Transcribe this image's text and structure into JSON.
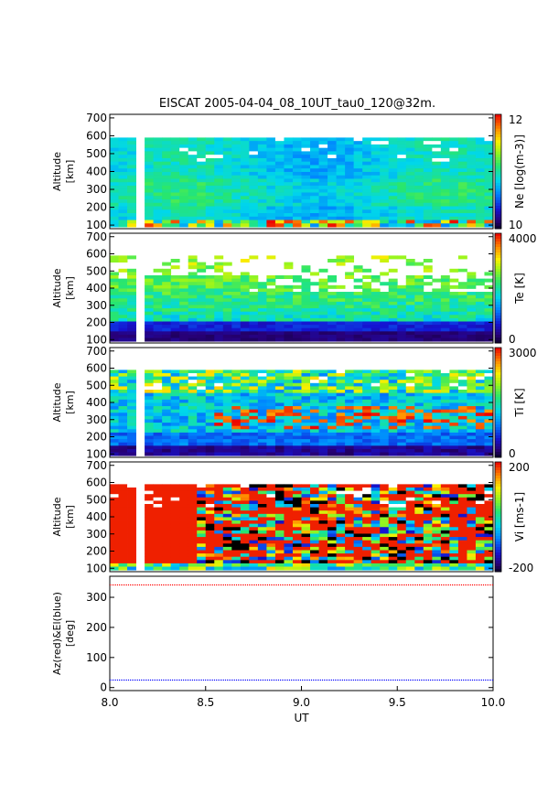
{
  "title": "EISCAT 2005-04-04_08_10UT_tau0_120@32m.",
  "colors": {
    "az_line": "#ff0000",
    "el_line": "#0000ff",
    "missing": "#ffffff",
    "bad": "#000000"
  },
  "chart_data": [
    {
      "type": "heatmap",
      "panel": "Ne",
      "ylabel_line1": "Altitude",
      "ylabel_line2": "[km]",
      "yticks": [
        "100",
        "200",
        "300",
        "400",
        "500",
        "600",
        "700"
      ],
      "ylim": [
        80,
        720
      ],
      "xlim": [
        8.0,
        10.0
      ],
      "colorbar_label": "Ne [log(m-3)]",
      "colorbar_max": "12",
      "colorbar_min": "10",
      "range": [
        10,
        12
      ]
    },
    {
      "type": "heatmap",
      "panel": "Te",
      "ylabel_line1": "Altitude",
      "ylabel_line2": "[km]",
      "yticks": [
        "100",
        "200",
        "300",
        "400",
        "500",
        "600",
        "700"
      ],
      "ylim": [
        80,
        720
      ],
      "xlim": [
        8.0,
        10.0
      ],
      "colorbar_label": "Te [K]",
      "colorbar_max": "4000",
      "colorbar_min": "0",
      "range": [
        0,
        4000
      ]
    },
    {
      "type": "heatmap",
      "panel": "Ti",
      "ylabel_line1": "Altitude",
      "ylabel_line2": "[km]",
      "yticks": [
        "100",
        "200",
        "300",
        "400",
        "500",
        "600",
        "700"
      ],
      "ylim": [
        80,
        720
      ],
      "xlim": [
        8.0,
        10.0
      ],
      "colorbar_label": "Ti [K]",
      "colorbar_max": "3000",
      "colorbar_min": "0",
      "range": [
        0,
        3000
      ]
    },
    {
      "type": "heatmap",
      "panel": "Vi",
      "ylabel_line1": "Altitude",
      "ylabel_line2": "[km]",
      "yticks": [
        "100",
        "200",
        "300",
        "400",
        "500",
        "600",
        "700"
      ],
      "ylim": [
        80,
        720
      ],
      "xlim": [
        8.0,
        10.0
      ],
      "colorbar_label": "Vi [ms-1]",
      "colorbar_max": "200",
      "colorbar_min": "-200",
      "range": [
        -200,
        200
      ]
    },
    {
      "type": "line",
      "panel": "AzEl",
      "ylabel_line1": "Az(red)&El(blue)",
      "ylabel_line2": "[deg]",
      "yticks": [
        "0",
        "100",
        "200",
        "300"
      ],
      "ylim": [
        -10,
        370
      ],
      "xlim": [
        8.0,
        10.0
      ],
      "xlabel": "UT",
      "xticks": [
        "8.0",
        "8.5",
        "9.0",
        "9.5",
        "10.0"
      ],
      "series": [
        {
          "name": "Az",
          "x": [
            8.0,
            10.0
          ],
          "values": [
            341,
            341
          ]
        },
        {
          "name": "El",
          "x": [
            8.0,
            10.0
          ],
          "values": [
            25,
            25
          ]
        }
      ]
    }
  ]
}
